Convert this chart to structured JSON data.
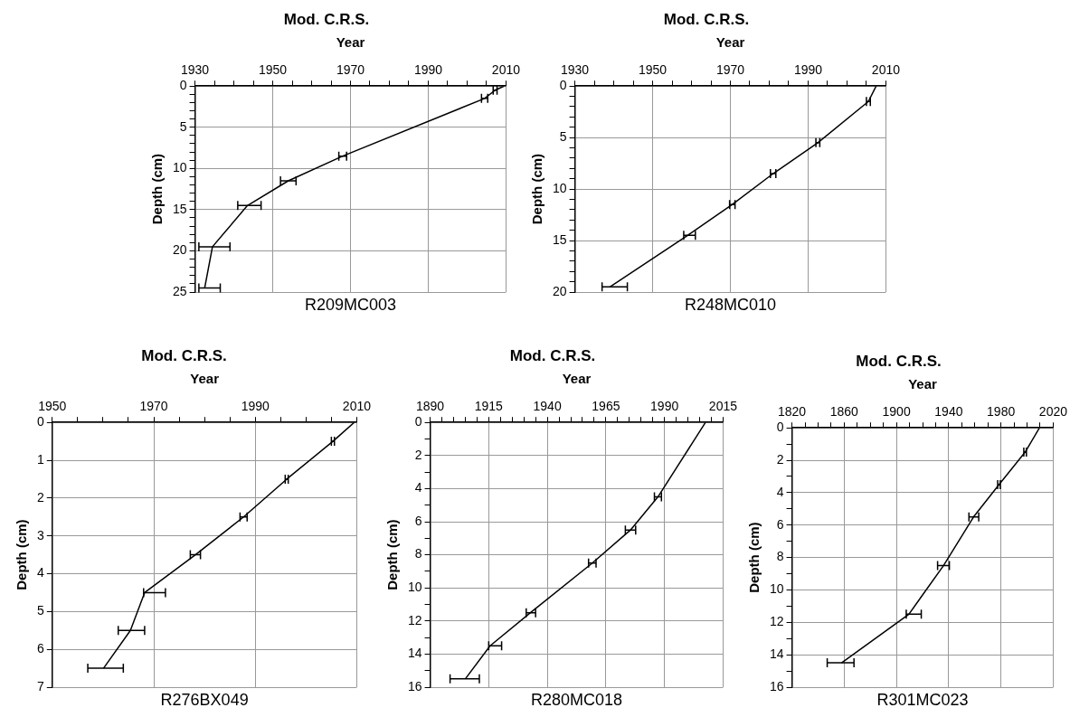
{
  "chart_data": [
    {
      "type": "line",
      "title": "Mod. C.R.S.",
      "xlabel": "Year",
      "ylabel": "Depth (cm)",
      "annotations": [
        "R209MC003"
      ],
      "color": "#000000",
      "grid": true,
      "x": [
        2009.5,
        2007.2,
        2004.5,
        1968,
        1954,
        1943.5,
        1934.5,
        1932.5
      ],
      "values": [
        0,
        0.5,
        1.5,
        8.5,
        11.5,
        14.5,
        19.5,
        24.5
      ],
      "xerrors": [
        null,
        0.5,
        0.8,
        1,
        [
          1952,
          1956
        ],
        [
          1941,
          1947
        ],
        [
          1931,
          1939
        ],
        [
          1931,
          1936.5
        ]
      ],
      "xlim": [
        1930,
        2010
      ],
      "xticks": [
        1930,
        {
          "value": 1935,
          "label": null
        },
        {
          "value": 1940,
          "label": null
        },
        {
          "value": 1945,
          "label": null
        },
        1950,
        {
          "value": 1955,
          "label": null
        },
        {
          "value": 1960,
          "label": null
        },
        {
          "value": 1965,
          "label": null
        },
        1970,
        {
          "value": 1975,
          "label": null
        },
        {
          "value": 1980,
          "label": null
        },
        {
          "value": 1985,
          "label": null
        },
        1990,
        {
          "value": 1995,
          "label": null
        },
        {
          "value": 2000,
          "label": null
        },
        {
          "value": 2005,
          "label": null
        },
        2010
      ],
      "ylim": [
        25,
        0
      ],
      "yticks": [
        0,
        {
          "value": 1,
          "label": null
        },
        {
          "value": 2,
          "label": null
        },
        {
          "value": 3,
          "label": null
        },
        {
          "value": 4,
          "label": null
        },
        5,
        {
          "value": 6,
          "label": null
        },
        {
          "value": 7,
          "label": null
        },
        {
          "value": 8,
          "label": null
        },
        {
          "value": 9,
          "label": null
        },
        10,
        {
          "value": 11,
          "label": null
        },
        {
          "value": 12,
          "label": null
        },
        {
          "value": 13,
          "label": null
        },
        {
          "value": 14,
          "label": null
        },
        15,
        {
          "value": 16,
          "label": null
        },
        {
          "value": 17,
          "label": null
        },
        {
          "value": 18,
          "label": null
        },
        {
          "value": 19,
          "label": null
        },
        20,
        {
          "value": 21,
          "label": null
        },
        {
          "value": 22,
          "label": null
        },
        {
          "value": 23,
          "label": null
        },
        {
          "value": 24,
          "label": null
        },
        25
      ]
    },
    {
      "type": "line",
      "title": "Mod. C.R.S.",
      "xlabel": "Year",
      "ylabel": "Depth (cm)",
      "annotations": [
        "R248MC010"
      ],
      "color": "#000000",
      "grid": true,
      "x": [
        2007.5,
        2005.5,
        1992.5,
        1981,
        1970.5,
        1959,
        1939
      ],
      "values": [
        0,
        1.5,
        5.5,
        8.5,
        11.5,
        14.5,
        19.5
      ],
      "xerrors": [
        null,
        0.5,
        0.5,
        0.7,
        0.7,
        [
          1958,
          1961
        ],
        [
          1937,
          1943.5
        ]
      ],
      "xlim": [
        1930,
        2010
      ],
      "xticks": [
        1930,
        {
          "value": 1935,
          "label": null
        },
        {
          "value": 1940,
          "label": null
        },
        {
          "value": 1945,
          "label": null
        },
        1950,
        {
          "value": 1955,
          "label": null
        },
        {
          "value": 1960,
          "label": null
        },
        {
          "value": 1965,
          "label": null
        },
        1970,
        {
          "value": 1975,
          "label": null
        },
        {
          "value": 1980,
          "label": null
        },
        {
          "value": 1985,
          "label": null
        },
        1990,
        {
          "value": 1995,
          "label": null
        },
        {
          "value": 2000,
          "label": null
        },
        {
          "value": 2005,
          "label": null
        },
        2010
      ],
      "ylim": [
        20,
        0
      ],
      "yticks": [
        0,
        {
          "value": 1,
          "label": null
        },
        {
          "value": 2,
          "label": null
        },
        {
          "value": 3,
          "label": null
        },
        {
          "value": 4,
          "label": null
        },
        5,
        {
          "value": 6,
          "label": null
        },
        {
          "value": 7,
          "label": null
        },
        {
          "value": 8,
          "label": null
        },
        {
          "value": 9,
          "label": null
        },
        10,
        {
          "value": 11,
          "label": null
        },
        {
          "value": 12,
          "label": null
        },
        {
          "value": 13,
          "label": null
        },
        {
          "value": 14,
          "label": null
        },
        15,
        {
          "value": 16,
          "label": null
        },
        {
          "value": 17,
          "label": null
        },
        {
          "value": 18,
          "label": null
        },
        {
          "value": 19,
          "label": null
        },
        20
      ]
    },
    {
      "type": "line",
      "title": "Mod. C.R.S.",
      "xlabel": "Year",
      "ylabel": "Depth (cm)",
      "annotations": [
        "R276BX049"
      ],
      "color": "#000000",
      "grid": true,
      "x": [
        2009.5,
        2005.3,
        1996.2,
        1987.7,
        1978.2,
        1968.2,
        1965.4,
        1960.1
      ],
      "values": [
        0,
        0.5,
        1.5,
        2.5,
        3.5,
        4.5,
        5.5,
        6.5
      ],
      "xerrors": [
        null,
        0.3,
        0.3,
        0.7,
        1,
        [
          1968,
          1972.3
        ],
        [
          1963,
          1968.2
        ],
        [
          1957,
          1964
        ]
      ],
      "xlim": [
        1950,
        2010
      ],
      "xticks": [
        1950,
        {
          "value": 1955,
          "label": null
        },
        {
          "value": 1960,
          "label": null
        },
        {
          "value": 1965,
          "label": null
        },
        1970,
        {
          "value": 1975,
          "label": null
        },
        {
          "value": 1980,
          "label": null
        },
        {
          "value": 1985,
          "label": null
        },
        1990,
        {
          "value": 1995,
          "label": null
        },
        {
          "value": 2000,
          "label": null
        },
        {
          "value": 2005,
          "label": null
        },
        2010
      ],
      "ylim": [
        7,
        0
      ],
      "yticks": [
        0,
        1,
        2,
        3,
        4,
        5,
        6,
        7
      ]
    },
    {
      "type": "line",
      "title": "Mod. C.R.S.",
      "xlabel": "Year",
      "ylabel": "Depth (cm)",
      "annotations": [
        "R280MC018"
      ],
      "color": "#000000",
      "grid": true,
      "x": [
        2007.5,
        1987.2,
        1975.5,
        1959.2,
        1932.8,
        1915.6,
        1905
      ],
      "values": [
        0,
        4.5,
        6.5,
        8.5,
        11.5,
        13.5,
        15.5
      ],
      "xerrors": [
        null,
        1.5,
        [
          1973.3,
          1977.7
        ],
        1.6,
        [
          1931,
          1935
        ],
        [
          1915,
          1920.5
        ],
        [
          1898.5,
          1911
        ]
      ],
      "xlim": [
        1890,
        2015
      ],
      "xticks": [
        1890,
        {
          "value": 1895,
          "label": null
        },
        {
          "value": 1900,
          "label": null
        },
        {
          "value": 1905,
          "label": null
        },
        {
          "value": 1910,
          "label": null
        },
        1915,
        {
          "value": 1920,
          "label": null
        },
        {
          "value": 1925,
          "label": null
        },
        {
          "value": 1930,
          "label": null
        },
        {
          "value": 1935,
          "label": null
        },
        1940,
        {
          "value": 1945,
          "label": null
        },
        {
          "value": 1950,
          "label": null
        },
        {
          "value": 1955,
          "label": null
        },
        {
          "value": 1960,
          "label": null
        },
        1965,
        {
          "value": 1970,
          "label": null
        },
        {
          "value": 1975,
          "label": null
        },
        {
          "value": 1980,
          "label": null
        },
        {
          "value": 1985,
          "label": null
        },
        1990,
        {
          "value": 1995,
          "label": null
        },
        {
          "value": 2000,
          "label": null
        },
        {
          "value": 2005,
          "label": null
        },
        {
          "value": 2010,
          "label": null
        },
        2015
      ],
      "ylim": [
        16,
        0
      ],
      "yticks": [
        0,
        {
          "value": 1,
          "label": null
        },
        2,
        {
          "value": 3,
          "label": null
        },
        4,
        {
          "value": 5,
          "label": null
        },
        6,
        {
          "value": 7,
          "label": null
        },
        8,
        {
          "value": 9,
          "label": null
        },
        10,
        {
          "value": 11,
          "label": null
        },
        12,
        {
          "value": 13,
          "label": null
        },
        14,
        {
          "value": 15,
          "label": null
        },
        16
      ]
    },
    {
      "type": "line",
      "title": "Mod. C.R.S.",
      "xlabel": "Year",
      "ylabel": "Depth (cm)",
      "annotations": [
        "R301MC023"
      ],
      "color": "#000000",
      "grid": true,
      "x": [
        2009.5,
        1998.5,
        1978.5,
        1959,
        1936,
        1909.5,
        1858
      ],
      "values": [
        0,
        1.5,
        3.5,
        5.5,
        8.5,
        11.5,
        14.5
      ],
      "xerrors": [
        null,
        1,
        1,
        [
          1955.5,
          1963
        ],
        [
          1931.5,
          1940.5
        ],
        [
          1907.5,
          1919
        ],
        [
          1847,
          1867.5
        ]
      ],
      "xlim": [
        1820,
        2020
      ],
      "xticks": [
        1820,
        {
          "value": 1830,
          "label": null
        },
        {
          "value": 1840,
          "label": null
        },
        {
          "value": 1850,
          "label": null
        },
        1860,
        {
          "value": 1870,
          "label": null
        },
        {
          "value": 1880,
          "label": null
        },
        {
          "value": 1890,
          "label": null
        },
        1900,
        {
          "value": 1910,
          "label": null
        },
        {
          "value": 1920,
          "label": null
        },
        {
          "value": 1930,
          "label": null
        },
        1940,
        {
          "value": 1950,
          "label": null
        },
        {
          "value": 1960,
          "label": null
        },
        {
          "value": 1970,
          "label": null
        },
        1980,
        {
          "value": 1990,
          "label": null
        },
        {
          "value": 2000,
          "label": null
        },
        {
          "value": 2010,
          "label": null
        },
        2020
      ],
      "ylim": [
        16,
        0
      ],
      "yticks": [
        0,
        {
          "value": 1,
          "label": null
        },
        2,
        {
          "value": 3,
          "label": null
        },
        4,
        {
          "value": 5,
          "label": null
        },
        6,
        {
          "value": 7,
          "label": null
        },
        8,
        {
          "value": 9,
          "label": null
        },
        10,
        {
          "value": 11,
          "label": null
        },
        12,
        {
          "value": 13,
          "label": null
        },
        14,
        {
          "value": 15,
          "label": null
        },
        16
      ]
    }
  ]
}
